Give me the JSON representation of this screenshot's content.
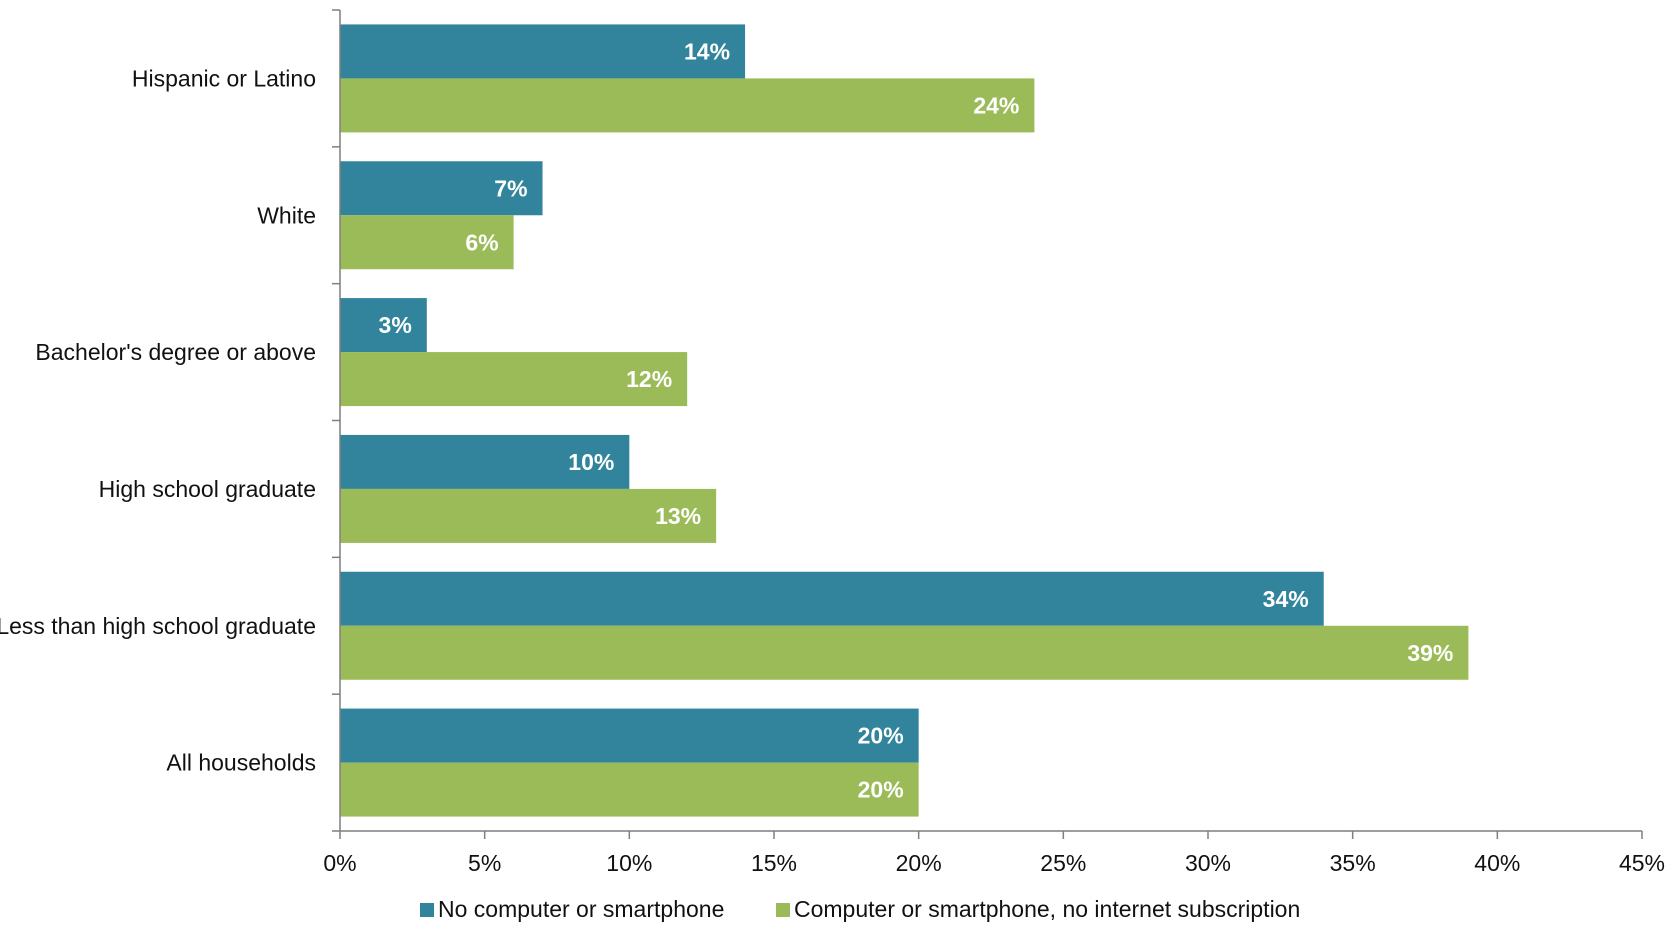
{
  "chart_data": {
    "type": "bar",
    "orientation": "horizontal",
    "categories": [
      "Hispanic or Latino",
      "White",
      "Bachelor's degree or above",
      "High school graduate",
      "Less than high school graduate",
      "All households"
    ],
    "series": [
      {
        "name": "No computer or smartphone",
        "color": "#31849b",
        "values": [
          14,
          7,
          3,
          10,
          34,
          20
        ],
        "labels": [
          "14%",
          "7%",
          "3%",
          "10%",
          "34%",
          "20%"
        ]
      },
      {
        "name": "Computer or smartphone, no internet subscription",
        "color": "#9bbb59",
        "values": [
          24,
          6,
          12,
          13,
          39,
          20
        ],
        "labels": [
          "24%",
          "6%",
          "12%",
          "13%",
          "39%",
          "20%"
        ]
      }
    ],
    "xlim": [
      0,
      45
    ],
    "x_ticks": [
      0,
      5,
      10,
      15,
      20,
      25,
      30,
      35,
      40,
      45
    ],
    "x_tick_labels": [
      "0%",
      "5%",
      "10%",
      "15%",
      "20%",
      "25%",
      "30%",
      "35%",
      "40%",
      "45%"
    ],
    "title": "",
    "xlabel": "",
    "ylabel": "",
    "legend_position": "bottom",
    "grid": false
  }
}
